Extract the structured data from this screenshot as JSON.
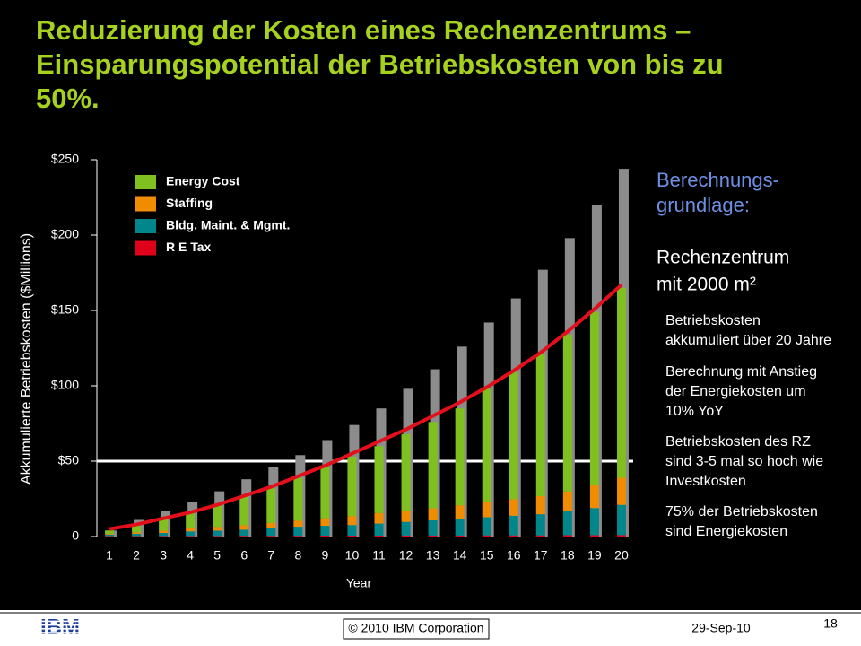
{
  "slide": {
    "title_lines": [
      "Reduzierung der Kosten eines Rechenzentrums –",
      "Einsparungspotential der Betriebskosten von bis zu",
      "50%."
    ],
    "notes": {
      "heading_lines": [
        "Berechnungs-",
        "grundlage:"
      ],
      "subheading_lines": [
        "Rechenzentrum",
        "mit 2000 m²"
      ],
      "paragraphs": [
        [
          "Betriebskosten",
          "akkumuliert über 20 Jahre"
        ],
        [
          "Berechnung mit Anstieg",
          "der Energiekosten um",
          "10% YoY"
        ],
        [
          "Betriebskosten des RZ",
          "sind 3-5 mal so hoch wie",
          "Investkosten"
        ],
        [
          "75% der Betriebskosten",
          "sind Energiekosten"
        ]
      ]
    },
    "footer": {
      "logo": "IBM",
      "copyright": "© 2010 IBM Corporation",
      "date": "29-Sep-10",
      "page": "18"
    }
  },
  "chart_data": {
    "type": "bar",
    "stacked": true,
    "x_label": "Year",
    "y_label": "Akkumulierte Betriebskosten ($Millions)",
    "categories": [
      "1",
      "2",
      "3",
      "4",
      "5",
      "6",
      "7",
      "8",
      "9",
      "10",
      "11",
      "12",
      "13",
      "14",
      "15",
      "16",
      "17",
      "18",
      "19",
      "20"
    ],
    "series": [
      {
        "name": "Energy Cost",
        "color": "#7fbf1f",
        "values": [
          2.2,
          5.2,
          8.1,
          11.6,
          14.6,
          19.5,
          23,
          28.5,
          33.9,
          39.4,
          44.4,
          50.8,
          57.3,
          64.3,
          75.2,
          84.2,
          94.2,
          104.1,
          115.1,
          126
        ]
      },
      {
        "name": "Staffing",
        "color": "#f08c00",
        "values": [
          0.5,
          1,
          1.5,
          2,
          2.5,
          3,
          3.5,
          4,
          5,
          6,
          7,
          7.5,
          8,
          9,
          10,
          11,
          12,
          13,
          15,
          18
        ]
      },
      {
        "name": "Bldg. Maint. & Mgmt.",
        "color": "#00868b",
        "values": [
          1,
          1.5,
          2,
          3,
          3.5,
          4,
          5,
          6,
          6.5,
          7,
          8,
          9,
          10,
          11,
          12,
          13,
          14,
          16,
          18,
          20
        ]
      },
      {
        "name": "R E Tax",
        "color": "#e0001a",
        "values": [
          0.3,
          0.3,
          0.4,
          0.4,
          0.4,
          0.5,
          0.5,
          0.5,
          0.6,
          0.6,
          0.6,
          0.7,
          0.7,
          0.7,
          0.8,
          0.8,
          0.8,
          0.9,
          0.9,
          1
        ]
      }
    ],
    "total_bars": {
      "color": "#8c8c8c",
      "values": [
        4,
        11,
        17,
        23,
        30,
        38,
        46,
        54,
        64,
        74,
        85,
        98,
        111,
        126,
        142,
        158,
        177,
        198,
        220,
        244
      ]
    },
    "trend_line": {
      "color": "#e3101c",
      "values": [
        5,
        8,
        12,
        16,
        21,
        27,
        33,
        40,
        47,
        55,
        63,
        71,
        80,
        89,
        99,
        110,
        122,
        136,
        151,
        167
      ]
    },
    "reference_line": 50,
    "ylim": [
      0,
      250
    ],
    "yticks": [
      0,
      {
        "value": 50,
        "label": "$50"
      },
      {
        "value": 100,
        "label": "$100"
      },
      {
        "value": 150,
        "label": "$150"
      },
      {
        "value": 200,
        "label": "$200"
      },
      {
        "value": 250,
        "label": "$250"
      }
    ]
  }
}
